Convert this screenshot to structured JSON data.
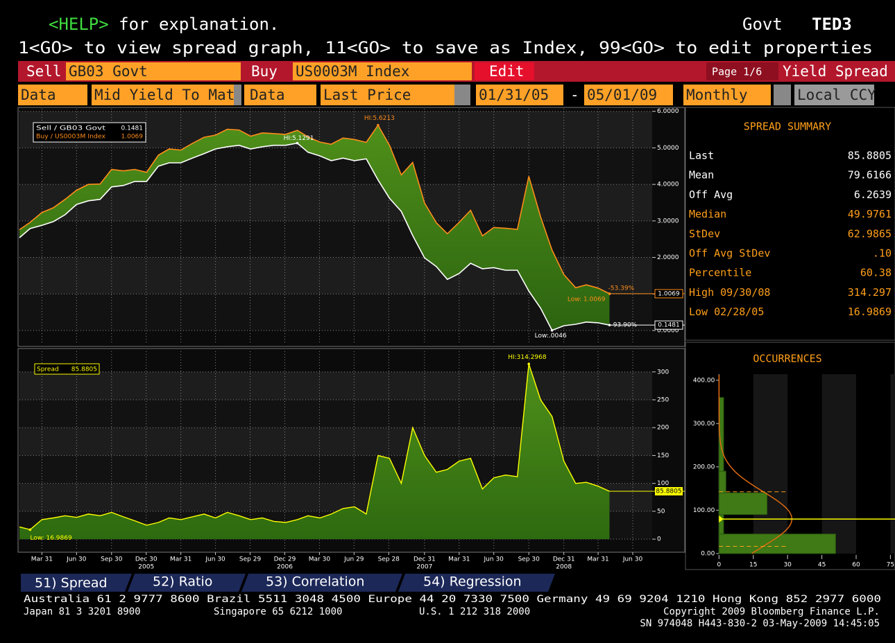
{
  "header": {
    "help_key": "<HELP>",
    "help_text": " for explanation.",
    "market": "Govt",
    "code": "TED3",
    "instructions": "1<GO> to view spread graph, 11<GO> to save as Index, 99<GO> to edit properties"
  },
  "fields": {
    "sell_label": "Sell",
    "sell_value": "GB03 Govt",
    "buy_label": "Buy",
    "buy_value": "US0003M Index",
    "edit": "Edit",
    "page": "Page 1/6",
    "view": "Yield Spread",
    "data_label_1": "Data",
    "data_value_1": "Mid Yield To Mat",
    "data_label_2": "Data",
    "data_value_2": "Last Price",
    "start_date": "01/31/05",
    "date_separator": "-",
    "end_date": "05/01/09",
    "frequency": "Monthly",
    "currency": "Local CCY"
  },
  "chart_data": [
    {
      "type": "line",
      "x": [
        "2005-01-31",
        "2005-02-28",
        "2005-03-31",
        "2005-04-30",
        "2005-05-31",
        "2005-06-30",
        "2005-07-31",
        "2005-08-31",
        "2005-09-30",
        "2005-10-31",
        "2005-11-30",
        "2005-12-31",
        "2006-01-31",
        "2006-02-28",
        "2006-03-31",
        "2006-04-30",
        "2006-05-31",
        "2006-06-30",
        "2006-07-31",
        "2006-08-31",
        "2006-09-30",
        "2006-10-31",
        "2006-11-30",
        "2006-12-31",
        "2007-01-31",
        "2007-02-28",
        "2007-03-31",
        "2007-04-30",
        "2007-05-31",
        "2007-06-30",
        "2007-07-31",
        "2007-08-31",
        "2007-09-30",
        "2007-10-31",
        "2007-11-30",
        "2007-12-31",
        "2008-01-31",
        "2008-02-29",
        "2008-03-31",
        "2008-04-30",
        "2008-05-31",
        "2008-06-30",
        "2008-07-31",
        "2008-08-31",
        "2008-09-30",
        "2008-10-31",
        "2008-11-30",
        "2008-12-31",
        "2009-01-31",
        "2009-02-28",
        "2009-03-31",
        "2009-04-30"
      ],
      "xlim": [
        "2005-01-31",
        "2009-08-20"
      ],
      "series": [
        {
          "name": "Sell / GB03 Govt",
          "legend_value": "0.1481",
          "last_label": "0.1481",
          "color": "#ffffff",
          "values": [
            2.54,
            2.79,
            2.88,
            2.98,
            3.17,
            3.45,
            3.55,
            3.59,
            3.93,
            3.97,
            4.08,
            4.08,
            4.5,
            4.59,
            4.59,
            4.72,
            4.84,
            4.97,
            5.03,
            5.07,
            4.97,
            5.03,
            5.07,
            5.07,
            5.1291,
            4.88,
            4.78,
            4.65,
            4.72,
            4.65,
            4.7,
            4.12,
            3.62,
            3.26,
            2.6,
            1.99,
            1.75,
            1.4,
            1.56,
            1.84,
            1.69,
            1.72,
            1.65,
            1.65,
            1.08,
            0.61,
            0.0046,
            0.13,
            0.17,
            0.23,
            0.21,
            0.1481
          ]
        },
        {
          "name": "Buy / US0003M Index",
          "legend_value": "1.0069",
          "last_label": "1.0069",
          "color": "#ff8c1a",
          "values": [
            2.76,
            2.96,
            3.23,
            3.36,
            3.59,
            3.84,
            4.0,
            4.01,
            4.41,
            4.37,
            4.41,
            4.33,
            4.8,
            4.97,
            4.94,
            5.12,
            5.29,
            5.35,
            5.51,
            5.49,
            5.32,
            5.41,
            5.39,
            5.37,
            5.48,
            5.3,
            5.16,
            5.1,
            5.27,
            5.23,
            5.15,
            5.6213,
            5.07,
            4.26,
            4.6,
            3.49,
            2.95,
            2.65,
            2.96,
            3.29,
            2.59,
            2.82,
            2.8,
            2.77,
            4.22,
            3.11,
            2.2,
            1.53,
            1.17,
            1.25,
            1.16,
            1.0069
          ]
        }
      ],
      "ylim": [
        -0.38,
        6.07
      ],
      "yticks": [
        {
          "value": 0,
          "label": "0.0000"
        },
        {
          "value": 1,
          "label": "1.0000"
        },
        {
          "value": 2,
          "label": "2.0000"
        },
        {
          "value": 3,
          "label": "3.0000"
        },
        {
          "value": 4,
          "label": "4.0000"
        },
        {
          "value": 5,
          "label": "5.0000"
        },
        {
          "value": 6,
          "label": "6.0000"
        }
      ],
      "grid": true,
      "annotations": [
        {
          "text": "HI:5.6213",
          "x": "2007-08-31",
          "y": 5.6213,
          "color": "#ff8c1a"
        },
        {
          "text": "HI:5.1291",
          "x": "2007-01-31",
          "y": 5.1291,
          "color": "#ffffff"
        },
        {
          "text": "Low: 1.0069",
          "x": "2009-04-30",
          "y": 1.0069,
          "color": "#ff8c1a"
        },
        {
          "text": "Low:.0046",
          "x": "2008-11-30",
          "y": 0.0046,
          "color": "#ffffff"
        },
        {
          "text": "-53.39%",
          "x": "2009-04-30",
          "y": 1.0069,
          "color": "#ff8c1a"
        },
        {
          "text": "-93.90%",
          "x": "2009-04-30",
          "y": 0.1481,
          "color": "#ffffff"
        }
      ]
    },
    {
      "type": "area",
      "x": [
        "2005-01-31",
        "2005-02-28",
        "2005-03-31",
        "2005-04-30",
        "2005-05-31",
        "2005-06-30",
        "2005-07-31",
        "2005-08-31",
        "2005-09-30",
        "2005-10-31",
        "2005-11-30",
        "2005-12-31",
        "2006-01-31",
        "2006-02-28",
        "2006-03-31",
        "2006-04-30",
        "2006-05-31",
        "2006-06-30",
        "2006-07-31",
        "2006-08-31",
        "2006-09-30",
        "2006-10-31",
        "2006-11-30",
        "2006-12-31",
        "2007-01-31",
        "2007-02-28",
        "2007-03-31",
        "2007-04-30",
        "2007-05-31",
        "2007-06-30",
        "2007-07-31",
        "2007-08-31",
        "2007-09-30",
        "2007-10-31",
        "2007-11-30",
        "2007-12-31",
        "2008-01-31",
        "2008-02-29",
        "2008-03-31",
        "2008-04-30",
        "2008-05-31",
        "2008-06-30",
        "2008-07-31",
        "2008-08-31",
        "2008-09-30",
        "2008-10-31",
        "2008-11-30",
        "2008-12-31",
        "2009-01-31",
        "2009-02-28",
        "2009-03-31",
        "2009-04-30"
      ],
      "xlim": [
        "2005-01-31",
        "2009-08-20"
      ],
      "series": [
        {
          "name": "Spread",
          "legend_value": "85.8805",
          "last_label": "85.8805",
          "color": "#ffff00",
          "values": [
            22,
            16.9869,
            35,
            38,
            42,
            39,
            45,
            42,
            48,
            40,
            33,
            25,
            30,
            38,
            35,
            40,
            45,
            38,
            48,
            42,
            35,
            38,
            32,
            30,
            35,
            42,
            38,
            45,
            55,
            58,
            45,
            150,
            145,
            100,
            200,
            150,
            120,
            125,
            140,
            145,
            90,
            110,
            115,
            112,
            314.297,
            250,
            220,
            140,
            100,
            102,
            95,
            85.8805
          ]
        }
      ],
      "ylim": [
        -21,
        337
      ],
      "yticks": [
        0,
        50,
        100,
        150,
        200,
        250,
        300
      ],
      "grid": true,
      "xticks": [
        {
          "value": "2005-03-31",
          "label": "Mar 31"
        },
        {
          "value": "2005-06-30",
          "label": "Jun 30"
        },
        {
          "value": "2005-09-30",
          "label": "Sep 30"
        },
        {
          "value": "2005-12-30",
          "label": "Dec 30"
        },
        {
          "value": "2006-03-31",
          "label": "Mar 31"
        },
        {
          "value": "2006-06-30",
          "label": "Jun 30"
        },
        {
          "value": "2006-09-29",
          "label": "Sep 29"
        },
        {
          "value": "2006-12-29",
          "label": "Dec 29"
        },
        {
          "value": "2007-03-30",
          "label": "Mar 30"
        },
        {
          "value": "2007-06-29",
          "label": "Jun 29"
        },
        {
          "value": "2007-09-28",
          "label": "Sep 28"
        },
        {
          "value": "2007-12-31",
          "label": "Dec 31"
        },
        {
          "value": "2008-03-31",
          "label": "Mar 31"
        },
        {
          "value": "2008-06-30",
          "label": "Jun 30"
        },
        {
          "value": "2008-09-30",
          "label": "Sep 30"
        },
        {
          "value": "2008-12-31",
          "label": "Dec 31"
        },
        {
          "value": "2009-03-31",
          "label": "Mar 31"
        },
        {
          "value": "2009-06-30",
          "label": "Jun 30"
        }
      ],
      "year_labels": [
        {
          "value": "2005-12-30",
          "label": "2005"
        },
        {
          "value": "2006-12-29",
          "label": "2006"
        },
        {
          "value": "2007-12-31",
          "label": "2007"
        },
        {
          "value": "2008-12-31",
          "label": "2008"
        }
      ],
      "annotations": [
        {
          "text": "HI:314.2968",
          "x": "2008-09-30",
          "y": 314.297,
          "color": "#ffff00"
        },
        {
          "text": "Low: 16.9869",
          "x": "2005-02-28",
          "y": 16.9869,
          "color": "#ffff00"
        }
      ]
    },
    {
      "type": "histogram",
      "title": "OCCURRENCES",
      "orientation": "horizontal",
      "bins": [
        0,
        45,
        90,
        140,
        190,
        360
      ],
      "counts": [
        51,
        2,
        21,
        3,
        2
      ],
      "color": "#3f7a16",
      "ylim": [
        -37,
        414
      ],
      "yticks": [
        {
          "value": 0,
          "label": "0.00"
        },
        {
          "value": 100,
          "label": "100.00"
        },
        {
          "value": 200,
          "label": "200.00"
        },
        {
          "value": 300,
          "label": "300.00"
        },
        {
          "value": 400,
          "label": "400.00"
        }
      ],
      "xlim": [
        -8,
        77
      ],
      "xticks": [
        0,
        15,
        30,
        45,
        60,
        75
      ],
      "normal": {
        "mean": 79.6166,
        "stdev": 62.9865
      }
    }
  ],
  "summary": {
    "title": "SPREAD SUMMARY",
    "rows": [
      {
        "label": "Last",
        "value": "85.8805",
        "color": "#ffffff"
      },
      {
        "label": "Mean",
        "value": "79.6166",
        "color": "#ffffff"
      },
      {
        "label": "Off Avg",
        "value": "6.2639",
        "color": "#ffffff"
      },
      {
        "label": "Median",
        "value": "49.9761",
        "color": "#ff9f1a"
      },
      {
        "label": "StDev",
        "value": "62.9865",
        "color": "#ff9f1a"
      },
      {
        "label": "Off Avg StDev",
        "value": ".10",
        "color": "#ff9f1a"
      },
      {
        "label": "Percentile",
        "value": "60.38",
        "color": "#ff9f1a"
      },
      {
        "label": "High 09/30/08",
        "value": "314.297",
        "color": "#ff9f1a"
      },
      {
        "label": "Low 02/28/05",
        "value": "16.9869",
        "color": "#ff9f1a"
      }
    ]
  },
  "tabs": [
    "51) Spread",
    "52) Ratio",
    "53) Correlation",
    "54) Regression"
  ],
  "footer": {
    "line1": "Australia 61 2 9777 8600 Brazil 5511 3048 4500 Europe 44 20 7330 7500 Germany 49 69 9204 1210 Hong Kong 852 2977 6000",
    "japan": "Japan 81 3 3201 8900",
    "singapore": "Singapore 65 6212 1000",
    "us": "U.S. 1 212 318 2000",
    "copyright": "Copyright 2009 Bloomberg Finance L.P.",
    "serial": "SN 974048 H443-830-2 03-May-2009 14:45:05"
  }
}
